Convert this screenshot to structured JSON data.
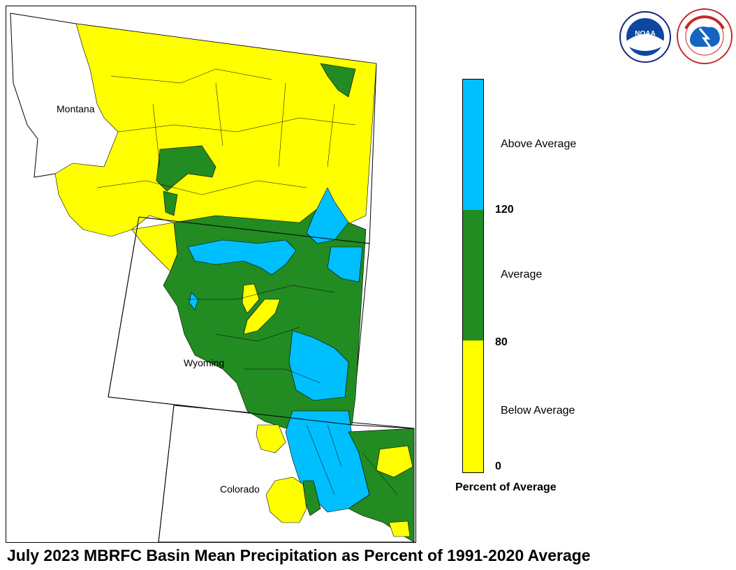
{
  "title": "July 2023 MBRFC Basin Mean Precipitation as Percent of 1991-2020 Average",
  "state_labels": {
    "montana": "Montana",
    "wyoming": "Wyoming",
    "colorado": "Colorado"
  },
  "legend": {
    "title": "Percent of Average",
    "categories": [
      {
        "label": "Above Average",
        "color": "#00bfff",
        "range": "> 120"
      },
      {
        "label": "Average",
        "color": "#228b22",
        "range": "80 - 120"
      },
      {
        "label": "Below Average",
        "color": "#ffff00",
        "range": "0 - 80"
      }
    ],
    "ticks": [
      "120",
      "80",
      "0"
    ]
  },
  "logos": {
    "noaa": {
      "text": "NOAA",
      "icon": "noaa-logo"
    },
    "nws": {
      "icon": "national-weather-service-logo"
    }
  },
  "colors": {
    "above": "#00bfff",
    "average": "#228b22",
    "below": "#ffff00",
    "border": "#000000"
  }
}
